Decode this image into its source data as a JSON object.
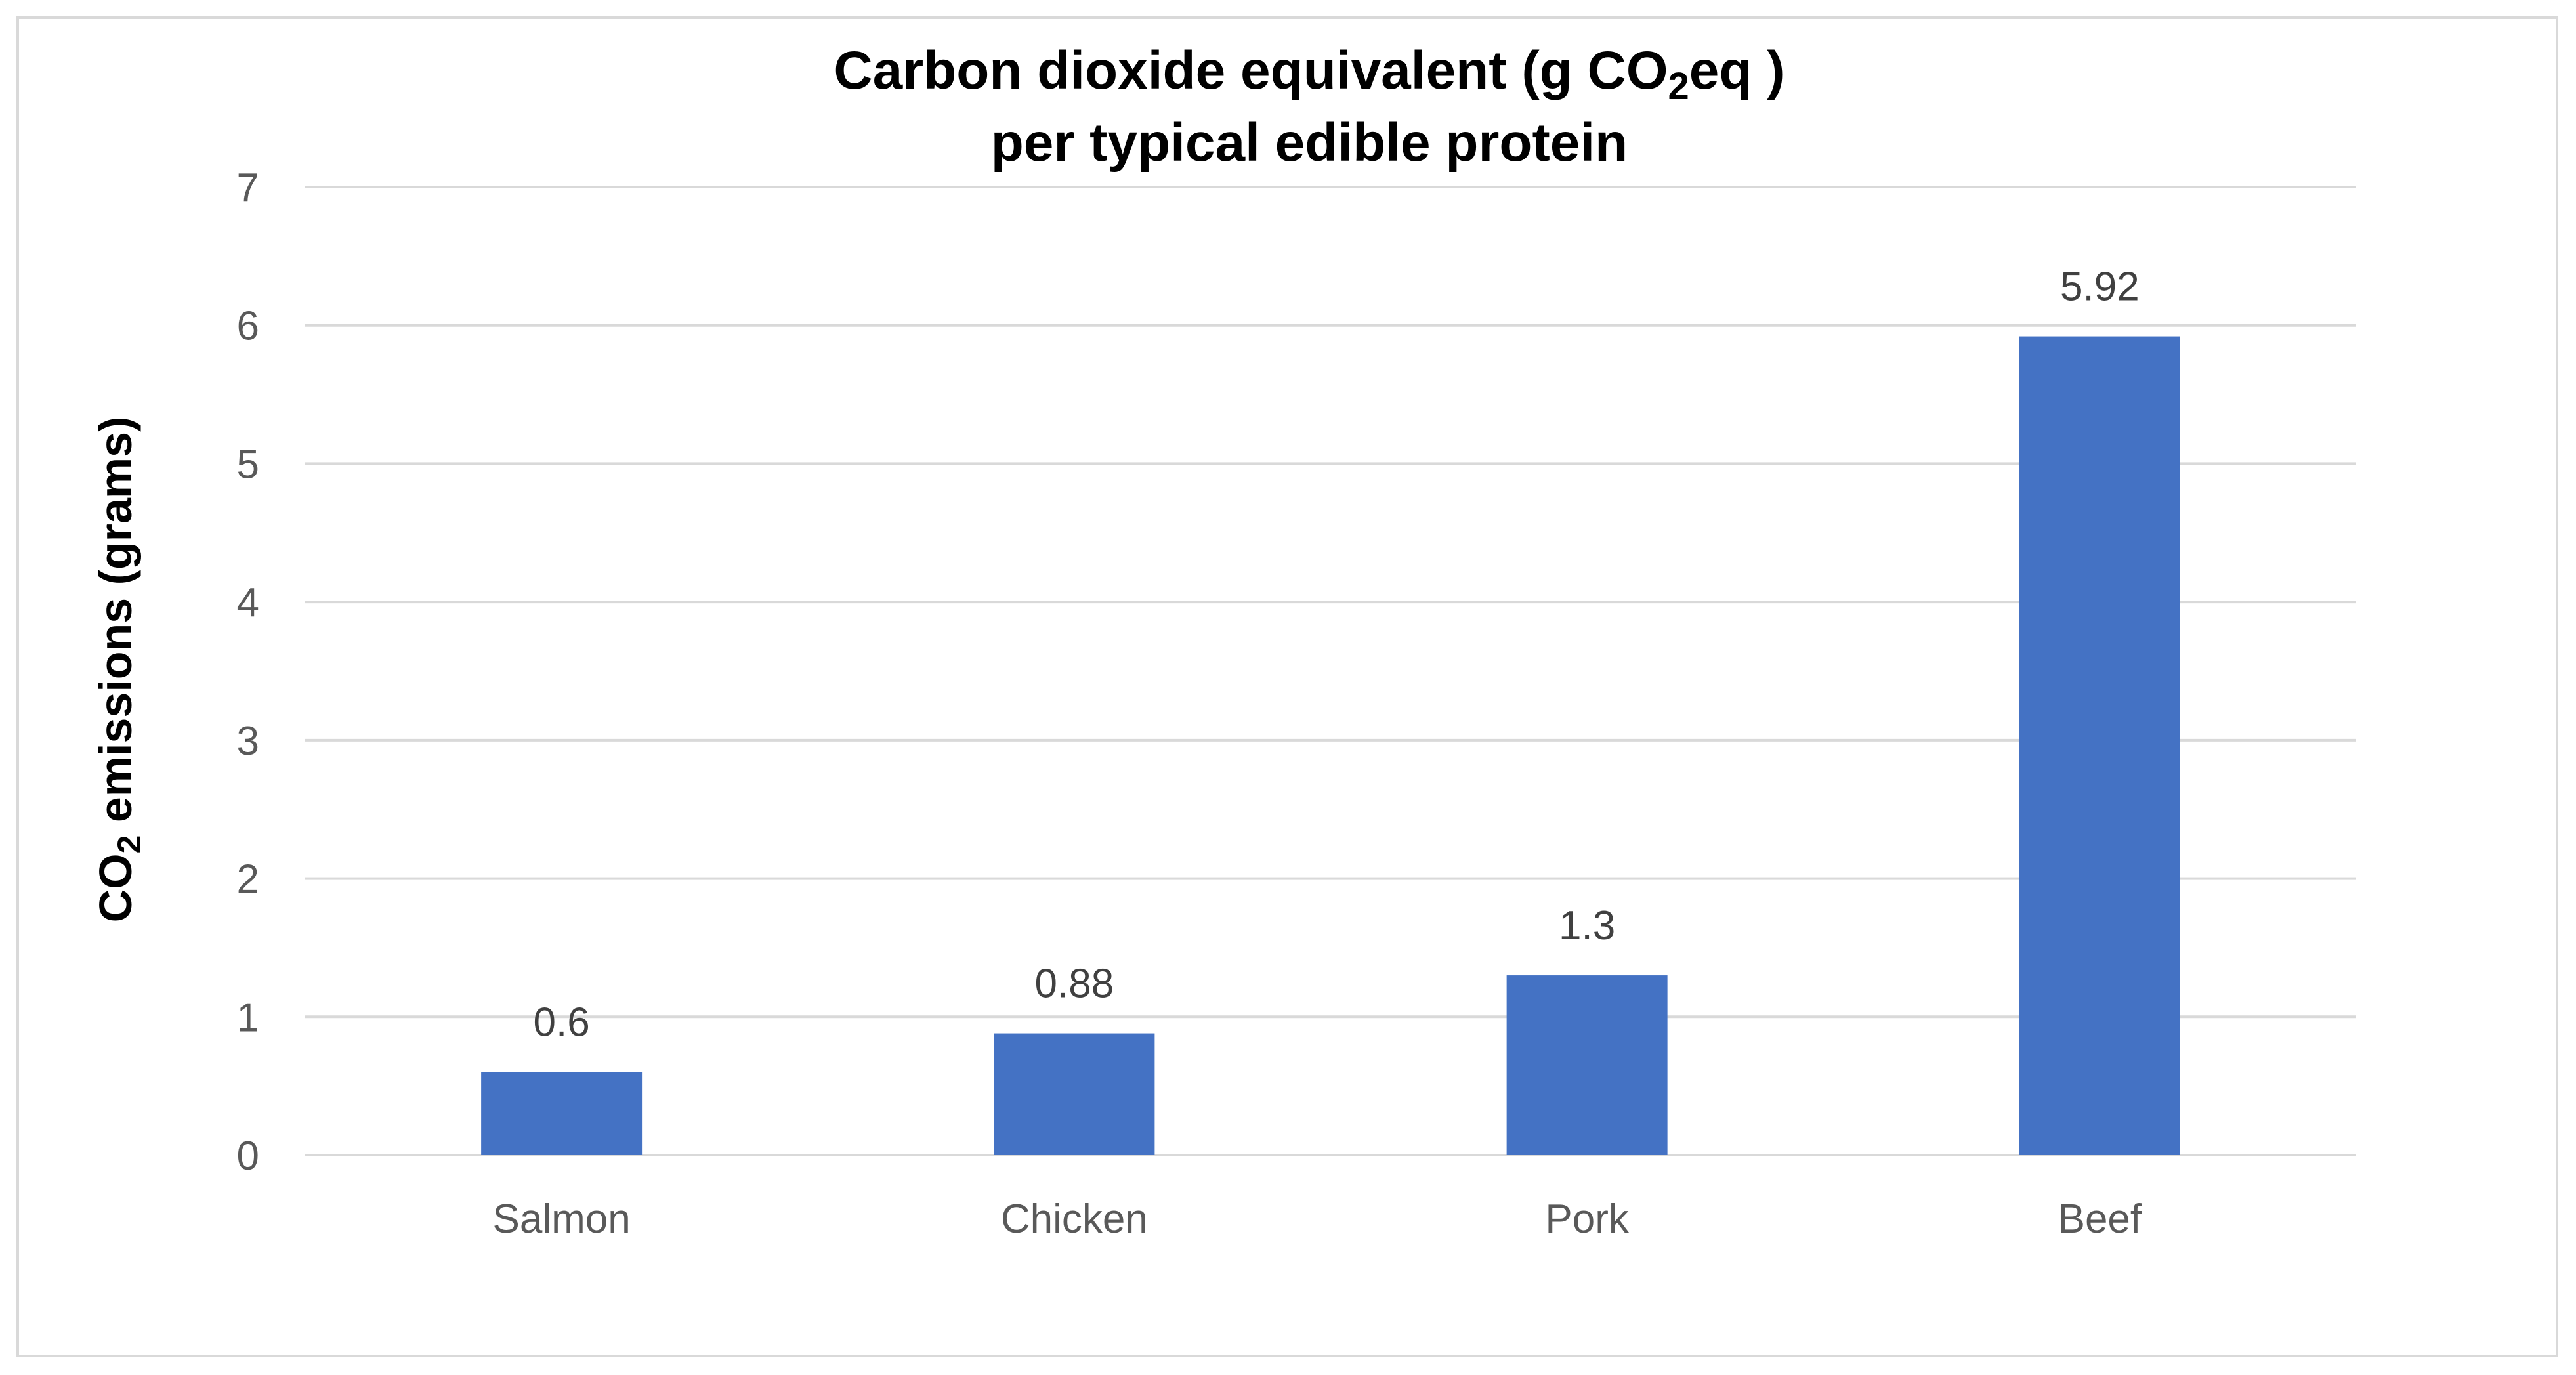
{
  "chart_data": {
    "type": "bar",
    "title": {
      "line1_before": "Carbon dioxide equivalent (g CO",
      "line1_sub": "2",
      "line1_after": "eq )",
      "line2": "per typical edible protein"
    },
    "ylabel": {
      "before": "CO",
      "sub": "2",
      "after": " emissions (grams)"
    },
    "xlabel": "",
    "categories": [
      "Salmon",
      "Chicken",
      "Pork",
      "Beef"
    ],
    "values": [
      0.6,
      0.88,
      1.3,
      5.92
    ],
    "data_labels": [
      "0.6",
      "0.88",
      "1.3",
      "5.92"
    ],
    "ylim": [
      0,
      7
    ],
    "yticks": [
      "0",
      "1",
      "2",
      "3",
      "4",
      "5",
      "6",
      "7"
    ],
    "grid": true,
    "legend": "none",
    "bar_color": "#4472c4",
    "grid_color": "#d9d9d9"
  }
}
